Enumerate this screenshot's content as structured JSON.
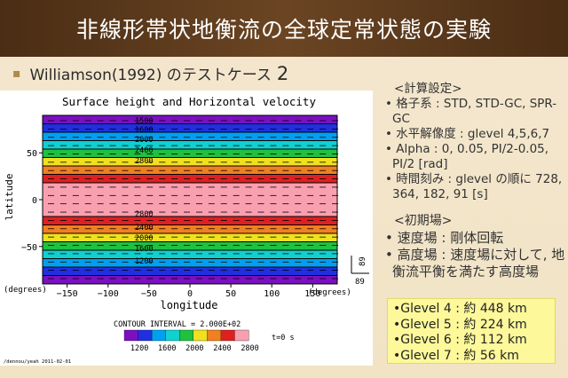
{
  "title": "非線形帯状地衡流の全球定常状態の実験",
  "subtitle": {
    "bullet": "▪",
    "text": "Williamson(1992) のテストケース",
    "number": "2"
  },
  "settings": {
    "heading": "<計算設定>",
    "items": [
      "• 格子系 : STD, STD-GC, SPR-GC",
      "• 水平解像度 : glevel 4,5,6,7",
      "• Alpha : 0, 0.05, PI/2-0.05, PI/2 [rad]",
      "• 時間刻み : glevel の順に 728, 364, 182, 91 [s]"
    ]
  },
  "initial": {
    "heading": "<初期場>",
    "items": [
      "• 速度場 : 剛体回転",
      "• 高度場 : 速度場に対して, 地衡流平衡を満たす高度場"
    ]
  },
  "glevels": [
    "•Glevel 4 : 約 448 km",
    "•Glevel 5 : 約 224 km",
    "•Glevel 6 : 約 112 km",
    "•Glevel 7 : 約   56 km"
  ],
  "chart_data": {
    "type": "heatmap",
    "title": "Surface height and Horizontal velocity",
    "xlabel": "longitude",
    "ylabel": "latitude",
    "x_unit": "(degrees)",
    "y_unit": "(degrees)",
    "x_ticks": [
      "−150",
      "−100",
      "−50",
      "0",
      "50",
      "100",
      "150"
    ],
    "y_ticks": [
      "50",
      "0",
      "−50"
    ],
    "contour_interval_label": "CONTOUR INTERVAL = 2.000E+02",
    "time_label": "t=0 s",
    "vector_ref": "89",
    "footer": "/dennou/yeah   2011-02-01",
    "colorbar": {
      "labels": [
        "1200",
        "1600",
        "2000",
        "2400",
        "2800"
      ],
      "colors": [
        "#7a10c0",
        "#2030e0",
        "#00a0f0",
        "#10d0d0",
        "#20c040",
        "#f0e020",
        "#f08020",
        "#e02020",
        "#f8a0b0"
      ]
    },
    "contour_labels": [
      "1500",
      "1600",
      "2000",
      "2400",
      "2800",
      "2800",
      "2400",
      "2000",
      "1600",
      "1200"
    ]
  }
}
